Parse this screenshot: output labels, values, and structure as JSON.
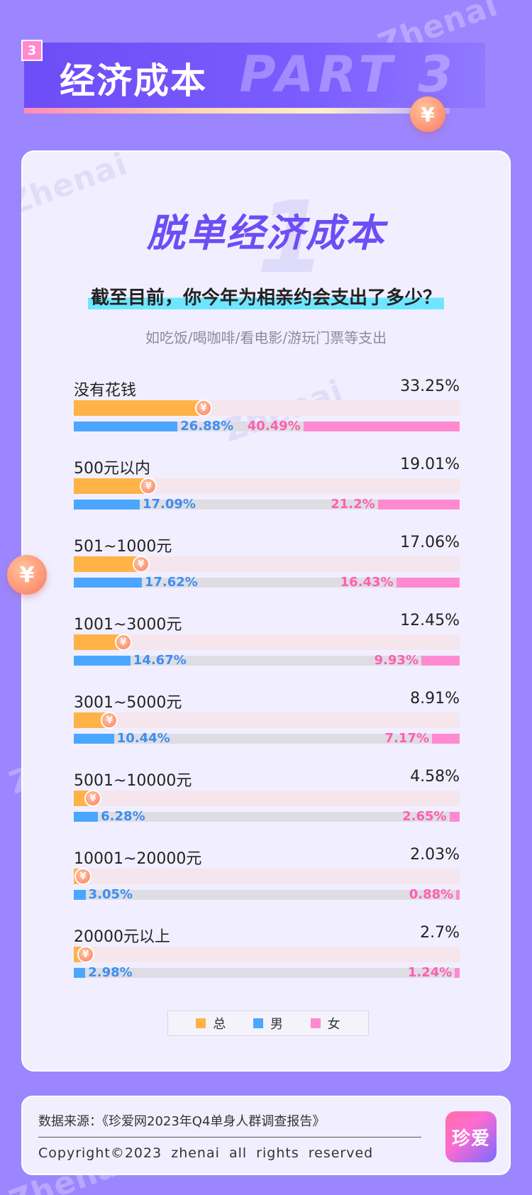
{
  "header": {
    "num": "3",
    "title": "经济成本",
    "part": "PART 3"
  },
  "watermark": "Zhenai",
  "card": {
    "title": "脱单经济成本",
    "title_bg": "1",
    "question": "截至目前，你今年为相亲约会支出了多少？",
    "subtitle": "如吃饭/喝咖啡/看电影/游玩门票等支出"
  },
  "coin_symbol": "¥",
  "colors": {
    "total": "#ffb347",
    "male": "#4ba6ff",
    "female": "#ff8ad0",
    "accent": "#6d4df5"
  },
  "chart_data": {
    "type": "bar",
    "categories": [
      "没有花钱",
      "500元以内",
      "501~1000元",
      "1001~3000元",
      "3001~5000元",
      "5001~10000元",
      "10001~20000元",
      "20000元以上"
    ],
    "series": [
      {
        "name": "总",
        "values": [
          33.25,
          19.01,
          17.06,
          12.45,
          8.91,
          4.58,
          2.03,
          2.7
        ],
        "labels": [
          "33.25%",
          "19.01%",
          "17.06%",
          "12.45%",
          "8.91%",
          "4.58%",
          "2.03%",
          "2.7%"
        ]
      },
      {
        "name": "男",
        "values": [
          26.88,
          17.09,
          17.62,
          14.67,
          10.44,
          6.28,
          3.05,
          2.98
        ],
        "labels": [
          "26.88%",
          "17.09%",
          "17.62%",
          "14.67%",
          "10.44%",
          "6.28%",
          "3.05%",
          "2.98%"
        ]
      },
      {
        "name": "女",
        "values": [
          40.49,
          21.2,
          16.43,
          9.93,
          7.17,
          2.65,
          0.88,
          1.24
        ],
        "labels": [
          "40.49%",
          "21.2%",
          "16.43%",
          "9.93%",
          "7.17%",
          "2.65%",
          "0.88%",
          "1.24%"
        ]
      }
    ],
    "value_max": 100,
    "legend": [
      "总",
      "男",
      "女"
    ],
    "legend_position": "bottom-center"
  },
  "footer": {
    "source": "数据来源：《珍爱网2023年Q4单身人群调查报告》",
    "copyright": "Copyright©2023 zhenai all rights reserved",
    "logo": "珍爱"
  }
}
